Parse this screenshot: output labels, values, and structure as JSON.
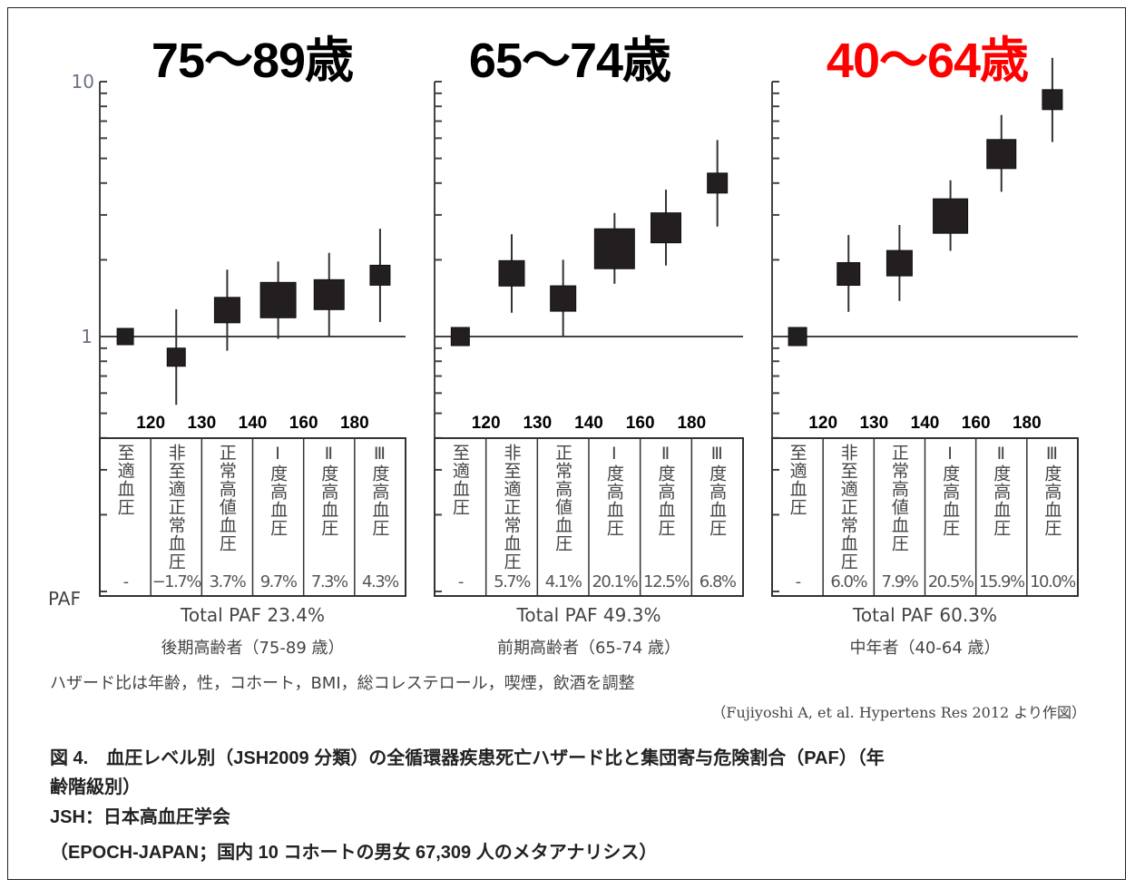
{
  "chart_data": {
    "type": "forest",
    "yscale": "log",
    "ylim": [
      0.1,
      10
    ],
    "ytick_labels": [
      "10",
      "1"
    ],
    "reference_line": 1,
    "paf_row_label": "PAF",
    "bp_thresholds": [
      "",
      "120",
      "130",
      "140",
      "160",
      "180"
    ],
    "categories": [
      "至適血圧",
      "非至適正常血圧",
      "正常高値血圧",
      "Ⅰ度高血圧",
      "Ⅱ度高血圧",
      "Ⅲ度高血圧"
    ],
    "panels": [
      {
        "title": "75～89歳",
        "title_color": "#000000",
        "hazard_ratio": [
          1.0,
          0.83,
          1.27,
          1.39,
          1.46,
          1.74
        ],
        "ci_low": [
          null,
          0.54,
          0.88,
          0.98,
          1.0,
          1.14
        ],
        "ci_high": [
          null,
          1.28,
          1.83,
          1.97,
          2.13,
          2.65
        ],
        "marker_weight": [
          0.9,
          1.0,
          1.4,
          1.95,
          1.65,
          1.1
        ],
        "paf": [
          "-",
          "−1.7%",
          "3.7%",
          "9.7%",
          "7.3%",
          "4.3%"
        ],
        "total_paf": "Total PAF 23.4%",
        "age_group": "後期高齢者（75-89 歳）"
      },
      {
        "title": "65～74歳",
        "title_color": "#000000",
        "hazard_ratio": [
          1.0,
          1.77,
          1.41,
          2.21,
          2.67,
          4.0
        ],
        "ci_low": [
          null,
          1.24,
          1.0,
          1.61,
          1.9,
          2.7
        ],
        "ci_high": [
          null,
          2.52,
          2.0,
          3.05,
          3.77,
          5.9
        ],
        "marker_weight": [
          1.0,
          1.4,
          1.4,
          2.2,
          1.65,
          1.1
        ],
        "paf": [
          "-",
          "5.7%",
          "4.1%",
          "20.1%",
          "12.5%",
          "6.8%"
        ],
        "total_paf": "Total PAF 49.3%",
        "age_group": "前期高齢者（65-74 歳）"
      },
      {
        "title": "40～64歳",
        "title_color": "#ff0000",
        "hazard_ratio": [
          1.0,
          1.76,
          1.94,
          2.97,
          5.2,
          8.5
        ],
        "ci_low": [
          null,
          1.25,
          1.38,
          2.17,
          3.7,
          5.8
        ],
        "ci_high": [
          null,
          2.5,
          2.74,
          4.1,
          7.4,
          12.4
        ],
        "marker_weight": [
          1.0,
          1.25,
          1.4,
          1.9,
          1.6,
          1.1
        ],
        "paf": [
          "-",
          "6.0%",
          "7.9%",
          "20.5%",
          "15.9%",
          "10.0%"
        ],
        "total_paf": "Total PAF 60.3%",
        "age_group": "中年者（40-64 歳）"
      }
    ]
  },
  "footnote": "ハザード比は年齢，性，コホート，BMI，総コレステロール，喫煙，飲酒を調整",
  "citation": "（Fujiyoshi A, et al.  Hypertens Res 2012 より作図）",
  "caption": {
    "line1": "図 4.　血圧レベル別（JSH2009 分類）の全循環器疾患死亡ハザード比と集団寄与危険割合（PAF）（年",
    "line2": "齢階級別）",
    "line3": "JSH：日本高血圧学会",
    "line4": "（EPOCH-JAPAN；国内 10 コホートの男女 67,309 人のメタアナリシス）"
  }
}
